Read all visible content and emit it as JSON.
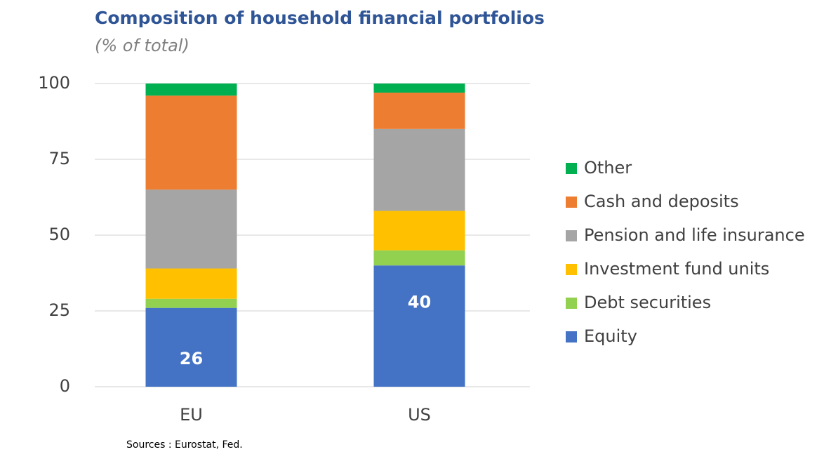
{
  "chart_data": {
    "type": "stacked_bar",
    "title": "Composition of household financial portfolios",
    "subtitle": "(% of total)",
    "source": "Sources : Eurostat, Fed.",
    "categories": [
      "EU",
      "US"
    ],
    "series": [
      {
        "name": "Equity",
        "color": "#4472c4",
        "values": [
          26,
          40
        ]
      },
      {
        "name": "Debt securities",
        "color": "#92d050",
        "values": [
          3,
          5
        ]
      },
      {
        "name": "Investment fund units",
        "color": "#ffc000",
        "values": [
          10,
          13
        ]
      },
      {
        "name": "Pension and life insurance",
        "color": "#a5a5a5",
        "values": [
          26,
          27
        ]
      },
      {
        "name": "Cash and deposits",
        "color": "#ed7d31",
        "values": [
          31,
          12
        ]
      },
      {
        "name": "Other",
        "color": "#00b050",
        "values": [
          4,
          3
        ]
      }
    ],
    "ylim": [
      0,
      100
    ],
    "yticks": [
      0,
      25,
      50,
      75,
      100
    ],
    "grid": true,
    "legend": "right"
  }
}
